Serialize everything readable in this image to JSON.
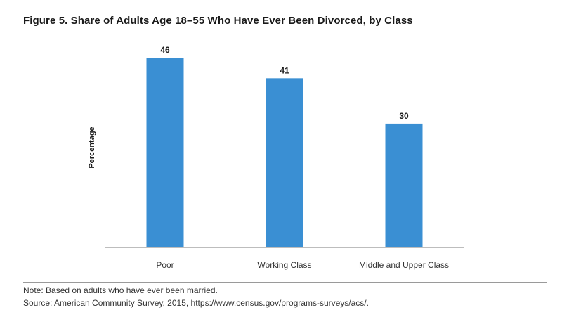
{
  "title": "Figure 5. Share of Adults Age 18–55 Who Have Ever Been Divorced, by Class",
  "notes": {
    "note": "Note: Based on adults who have ever been married.",
    "source": "Source: American Community Survey, 2015, https://www.census.gov/programs-surveys/acs/."
  },
  "chart_data": {
    "type": "bar",
    "title": "Figure 5. Share of Adults Age 18–55 Who Have Ever Been Divorced, by Class",
    "xlabel": "",
    "ylabel": "Percentage",
    "categories": [
      "Poor",
      "Working Class",
      "Middle and Upper Class"
    ],
    "values": [
      46,
      41,
      30
    ],
    "value_labels": [
      "46",
      "41",
      "30"
    ],
    "ylim": [
      0,
      50
    ],
    "grid": false,
    "legend": "none",
    "bar_color": "#3a8fd3",
    "axis_color": "#bdbdbd"
  }
}
